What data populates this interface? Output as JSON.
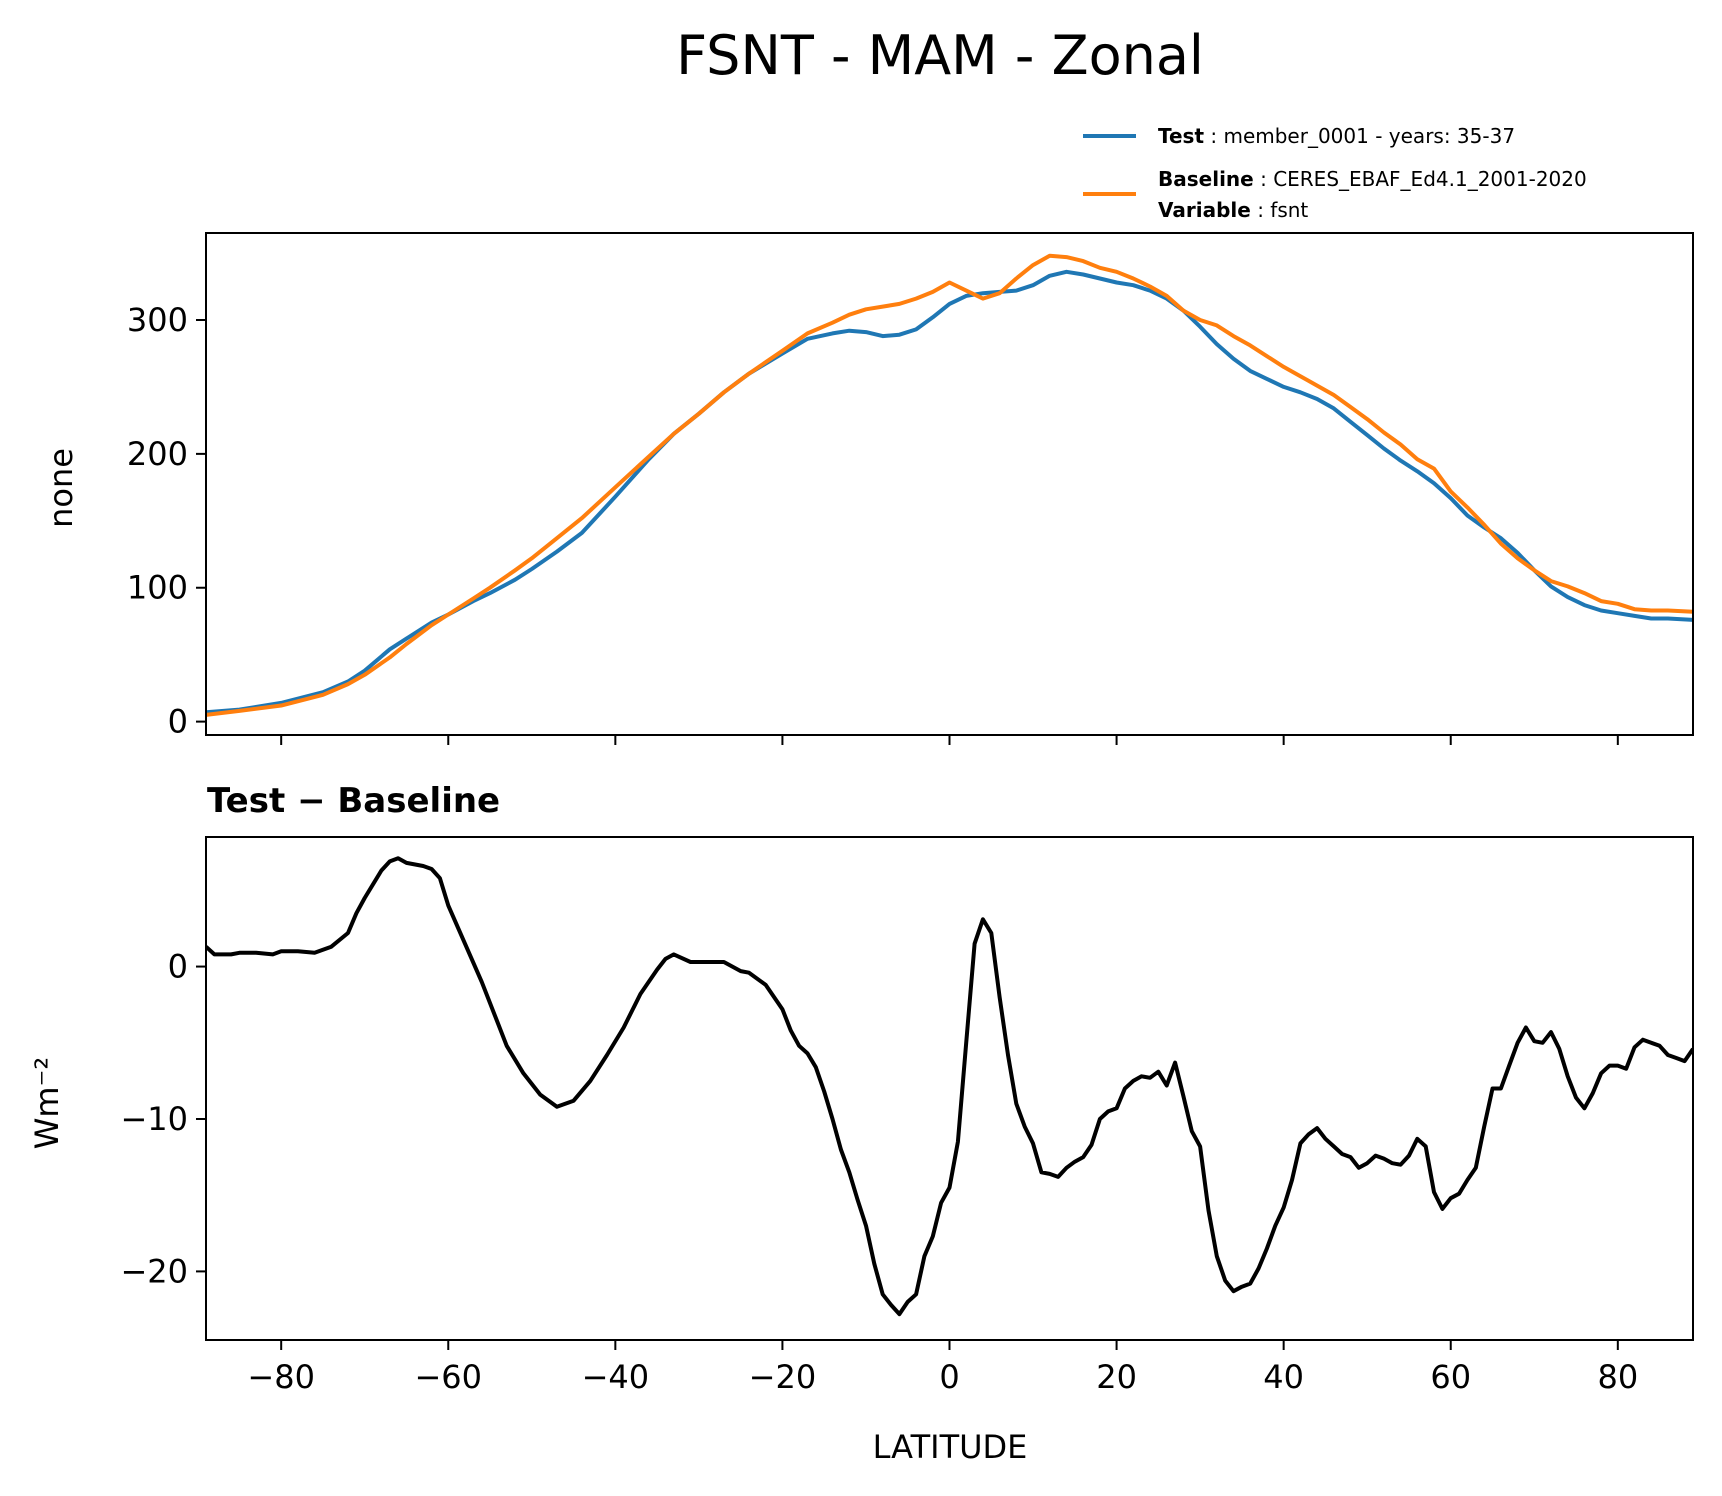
{
  "title": "FSNT - MAM - Zonal",
  "legend": {
    "test": {
      "name": "Test",
      "text": "member_0001 - years: 35-37"
    },
    "baseline": {
      "name": "Baseline",
      "text": "CERES_EBAF_Ed4.1_2001-2020"
    },
    "variable": {
      "name": "Variable",
      "text": "fsnt"
    }
  },
  "colors": {
    "test": "#1f77b4",
    "baseline": "#ff7f0e",
    "diff": "#000000"
  },
  "chart_data": [
    {
      "type": "line",
      "title": "",
      "xlabel": "",
      "ylabel": "none",
      "xlim": [
        -89,
        89
      ],
      "ylim": [
        -10,
        365
      ],
      "yticks": [
        0,
        100,
        200,
        300
      ],
      "xticks": [
        -80,
        -60,
        -40,
        -20,
        0,
        20,
        40,
        60,
        80
      ],
      "series": [
        {
          "name": "Test",
          "x": [
            -89,
            -85,
            -80,
            -75,
            -72,
            -70,
            -67,
            -65,
            -62,
            -60,
            -57,
            -55,
            -52,
            -50,
            -47,
            -44,
            -40,
            -36,
            -33,
            -30,
            -27,
            -24,
            -20,
            -17,
            -14,
            -12,
            -10,
            -8,
            -6,
            -4,
            -2,
            0,
            2,
            4,
            6,
            8,
            10,
            12,
            14,
            16,
            18,
            20,
            22,
            24,
            26,
            28,
            30,
            32,
            34,
            36,
            38,
            40,
            42,
            44,
            46,
            48,
            50,
            52,
            54,
            56,
            58,
            60,
            62,
            64,
            66,
            68,
            70,
            72,
            74,
            76,
            78,
            80,
            82,
            84,
            86,
            89
          ],
          "values": [
            7,
            9,
            14,
            22,
            30,
            38,
            54,
            62,
            74,
            80,
            90,
            96,
            106,
            114,
            127,
            141,
            168,
            196,
            215,
            230,
            246,
            260,
            275,
            286,
            290,
            292,
            291,
            288,
            289,
            293,
            302,
            312,
            318,
            320,
            321,
            322,
            326,
            333,
            336,
            334,
            331,
            328,
            326,
            322,
            316,
            307,
            295,
            282,
            271,
            262,
            256,
            250,
            246,
            241,
            234,
            224,
            214,
            204,
            195,
            187,
            178,
            167,
            154,
            145,
            137,
            126,
            113,
            101,
            93,
            87,
            83,
            81,
            79,
            77,
            77,
            76
          ]
        },
        {
          "name": "Baseline",
          "x": [
            -89,
            -85,
            -80,
            -75,
            -72,
            -70,
            -67,
            -65,
            -62,
            -60,
            -57,
            -55,
            -52,
            -50,
            -47,
            -44,
            -40,
            -36,
            -33,
            -30,
            -27,
            -24,
            -20,
            -17,
            -14,
            -12,
            -10,
            -8,
            -6,
            -4,
            -2,
            0,
            2,
            4,
            6,
            8,
            10,
            12,
            14,
            16,
            18,
            20,
            22,
            24,
            26,
            28,
            30,
            32,
            34,
            36,
            38,
            40,
            42,
            44,
            46,
            48,
            50,
            52,
            54,
            56,
            58,
            60,
            62,
            64,
            66,
            68,
            70,
            72,
            74,
            76,
            78,
            80,
            82,
            84,
            86,
            89
          ],
          "values": [
            5,
            8,
            12,
            20,
            28,
            35,
            48,
            58,
            72,
            80,
            92,
            100,
            113,
            122,
            137,
            152,
            175,
            198,
            215,
            230,
            246,
            260,
            277,
            290,
            298,
            304,
            308,
            310,
            312,
            316,
            321,
            328,
            322,
            316,
            320,
            331,
            341,
            348,
            347,
            344,
            339,
            336,
            331,
            325,
            318,
            307,
            300,
            296,
            288,
            281,
            273,
            265,
            258,
            251,
            244,
            235,
            226,
            216,
            207,
            196,
            189,
            172,
            160,
            147,
            133,
            122,
            113,
            105,
            101,
            96,
            90,
            88,
            84,
            83,
            83,
            82
          ]
        }
      ]
    },
    {
      "type": "line",
      "title": "Test − Baseline",
      "xlabel": "LATITUDE",
      "ylabel": "Wm⁻²",
      "xlim": [
        -89,
        89
      ],
      "ylim": [
        -24.5,
        8.5
      ],
      "yticks": [
        -20,
        -10,
        0
      ],
      "xticks": [
        -80,
        -60,
        -40,
        -20,
        0,
        20,
        40,
        60,
        80
      ],
      "xtick_labels": [
        "−80",
        "−60",
        "−40",
        "−20",
        "0",
        "20",
        "40",
        "60",
        "80"
      ],
      "ytick_labels": [
        "−20",
        "−10",
        "0"
      ],
      "series": [
        {
          "name": "Test − Baseline",
          "x": [
            -89,
            -88,
            -86,
            -85,
            -83,
            -81,
            -80,
            -78,
            -76,
            -74,
            -72,
            -71,
            -70,
            -68,
            -67,
            -66,
            -65,
            -63,
            -62,
            -61,
            -60,
            -58,
            -56,
            -54,
            -53,
            -51,
            -49,
            -47,
            -45,
            -43,
            -41,
            -39,
            -37,
            -35,
            -34,
            -33,
            -31,
            -29,
            -27,
            -25,
            -24,
            -22,
            -20,
            -19,
            -18,
            -17,
            -16,
            -15,
            -14,
            -13,
            -12,
            -11,
            -10,
            -9,
            -8,
            -7,
            -6,
            -5,
            -4,
            -3,
            -2,
            -1,
            0,
            1,
            2,
            3,
            4,
            5,
            6,
            7,
            8,
            9,
            10,
            11,
            12,
            13,
            14,
            15,
            16,
            17,
            18,
            19,
            20,
            21,
            22,
            23,
            24,
            25,
            26,
            27,
            28,
            29,
            30,
            31,
            32,
            33,
            34,
            35,
            36,
            37,
            38,
            39,
            40,
            41,
            42,
            43,
            44,
            45,
            46,
            47,
            48,
            49,
            50,
            51,
            52,
            53,
            54,
            55,
            56,
            57,
            58,
            59,
            60,
            61,
            62,
            63,
            64,
            65,
            66,
            67,
            68,
            69,
            70,
            71,
            72,
            73,
            74,
            75,
            76,
            77,
            78,
            79,
            80,
            81,
            82,
            83,
            84,
            85,
            86,
            87,
            88,
            89
          ],
          "values": [
            1.3,
            0.8,
            0.8,
            0.9,
            0.9,
            0.8,
            1.0,
            1.0,
            0.9,
            1.3,
            2.2,
            3.5,
            4.5,
            6.3,
            6.9,
            7.1,
            6.8,
            6.6,
            6.4,
            5.8,
            4.0,
            1.5,
            -1.0,
            -3.8,
            -5.2,
            -7.0,
            -8.4,
            -9.2,
            -8.8,
            -7.5,
            -5.8,
            -4.0,
            -1.8,
            -0.2,
            0.5,
            0.8,
            0.3,
            0.3,
            0.3,
            -0.3,
            -0.4,
            -1.2,
            -2.8,
            -4.2,
            -5.2,
            -5.7,
            -6.6,
            -8.2,
            -10.0,
            -12.0,
            -13.5,
            -15.3,
            -17.0,
            -19.5,
            -21.5,
            -22.2,
            -22.8,
            -22.0,
            -21.5,
            -19.0,
            -17.7,
            -15.5,
            -14.5,
            -11.5,
            -5.0,
            1.5,
            3.1,
            2.2,
            -2.0,
            -5.8,
            -9.0,
            -10.5,
            -11.6,
            -13.5,
            -13.6,
            -13.8,
            -13.2,
            -12.8,
            -12.5,
            -11.7,
            -10.0,
            -9.5,
            -9.3,
            -8.0,
            -7.5,
            -7.2,
            -7.3,
            -6.9,
            -7.8,
            -6.3,
            -8.5,
            -10.8,
            -11.8,
            -16.0,
            -19.0,
            -20.6,
            -21.3,
            -21.0,
            -20.8,
            -19.8,
            -18.5,
            -17.0,
            -15.8,
            -14.0,
            -11.6,
            -11.0,
            -10.6,
            -11.3,
            -11.8,
            -12.3,
            -12.5,
            -13.2,
            -12.9,
            -12.4,
            -12.6,
            -12.9,
            -13.0,
            -12.4,
            -11.3,
            -11.8,
            -14.8,
            -15.9,
            -15.2,
            -14.9,
            -14.0,
            -13.2,
            -10.5,
            -8.0,
            -8.0,
            -6.5,
            -5.0,
            -4.0,
            -4.9,
            -5.0,
            -4.3,
            -5.4,
            -7.2,
            -8.6,
            -9.3,
            -8.3,
            -7.0,
            -6.5,
            -6.5,
            -6.7,
            -5.3,
            -4.8,
            -5.0,
            -5.2,
            -5.8,
            -6.0,
            -6.2,
            -5.4
          ]
        }
      ]
    }
  ]
}
